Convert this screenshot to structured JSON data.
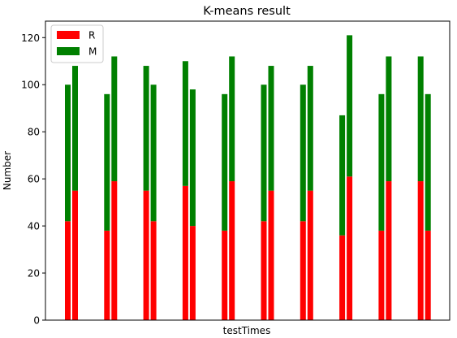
{
  "chart_data": {
    "type": "bar",
    "title": "K-means result",
    "xlabel": "testTimes",
    "ylabel": "Number",
    "ylim": [
      0,
      127
    ],
    "yticks": [
      0,
      20,
      40,
      60,
      80,
      100,
      120
    ],
    "stacked": true,
    "grid": false,
    "legend_position": "top-left",
    "groups": 10,
    "bars_per_group": 2,
    "series": [
      {
        "name": "R",
        "color": "#ff0000",
        "values": [
          42,
          55,
          38,
          59,
          55,
          42,
          57,
          40,
          38,
          59,
          42,
          55,
          42,
          55,
          36,
          61,
          38,
          59,
          59,
          38
        ]
      },
      {
        "name": "M",
        "color": "#008000",
        "values": [
          58,
          53,
          58,
          53,
          53,
          58,
          53,
          58,
          58,
          53,
          58,
          53,
          58,
          53,
          51,
          60,
          58,
          53,
          53,
          58
        ]
      }
    ]
  }
}
